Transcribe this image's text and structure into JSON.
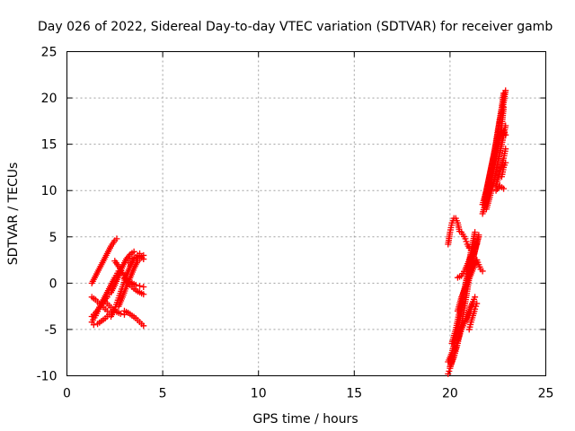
{
  "chart_data": {
    "type": "scatter",
    "title": "Day 026 of 2022, Sidereal Day-to-day VTEC variation (SDTVAR) for receiver gamb",
    "xlabel": "GPS time / hours",
    "ylabel": "SDTVAR / TECUs",
    "xlim": [
      0,
      25
    ],
    "ylim": [
      -10,
      25
    ],
    "xticks": [
      0,
      5,
      10,
      15,
      20,
      25
    ],
    "yticks": [
      -10,
      -5,
      0,
      5,
      10,
      15,
      20,
      25
    ],
    "xtick_labels": [
      "0",
      "5",
      "10",
      "15",
      "20",
      "25"
    ],
    "ytick_labels": [
      "-10",
      "-5",
      "0",
      "5",
      "10",
      "15",
      "20",
      "25"
    ],
    "grid": true,
    "marker": "+",
    "color": "#ff0000",
    "series": [
      {
        "x": [
          1.3,
          1.5,
          1.7,
          1.9,
          2.1,
          2.3,
          2.5,
          2.6
        ],
        "y": [
          0.0,
          0.8,
          1.6,
          2.4,
          3.2,
          4.0,
          4.6,
          4.8
        ]
      },
      {
        "x": [
          1.3,
          1.5,
          1.7,
          1.9,
          2.1,
          2.3,
          2.5,
          2.7,
          2.8
        ],
        "y": [
          -4.2,
          -3.5,
          -2.6,
          -1.8,
          -1.0,
          -0.2,
          0.6,
          1.3,
          1.6
        ]
      },
      {
        "x": [
          1.3,
          1.5,
          1.7,
          1.9,
          2.1,
          2.2
        ],
        "y": [
          -3.6,
          -3.2,
          -2.6,
          -2.0,
          -1.5,
          -1.2
        ]
      },
      {
        "x": [
          1.4,
          1.6,
          1.8,
          2.0,
          2.2,
          2.4
        ],
        "y": [
          -4.5,
          -4.4,
          -4.1,
          -3.8,
          -3.4,
          -3.0
        ]
      },
      {
        "x": [
          1.3,
          1.5,
          1.7,
          1.9,
          2.1
        ],
        "y": [
          -1.5,
          -1.8,
          -2.2,
          -2.6,
          -3.0
        ]
      },
      {
        "x": [
          2.0,
          2.2,
          2.4,
          2.6,
          2.8,
          3.0
        ],
        "y": [
          -2.0,
          -2.4,
          -2.8,
          -3.1,
          -3.3,
          -3.4
        ]
      },
      {
        "x": [
          2.3,
          2.5,
          2.7,
          2.9,
          3.1,
          3.3,
          3.5,
          3.7,
          3.8
        ],
        "y": [
          -3.6,
          -2.8,
          -1.6,
          -0.4,
          0.8,
          1.8,
          2.6,
          3.0,
          3.2
        ]
      },
      {
        "x": [
          2.3,
          2.5,
          2.7,
          2.9,
          3.1,
          3.3,
          3.5
        ],
        "y": [
          -1.0,
          -0.2,
          0.8,
          1.8,
          2.6,
          3.1,
          3.4
        ]
      },
      {
        "x": [
          2.7,
          2.9,
          3.1,
          3.3,
          3.5,
          3.7,
          3.9,
          4.0
        ],
        "y": [
          -2.5,
          -1.5,
          -0.4,
          0.6,
          1.6,
          2.4,
          2.8,
          3.0
        ]
      },
      {
        "x": [
          2.5,
          2.7,
          2.9,
          3.1,
          3.3,
          3.5,
          3.7,
          3.9,
          4.0
        ],
        "y": [
          2.4,
          1.8,
          1.1,
          0.4,
          -0.2,
          -0.6,
          -0.9,
          -1.1,
          -1.2
        ]
      },
      {
        "x": [
          3.0,
          3.2,
          3.4,
          3.6,
          3.8,
          4.0
        ],
        "y": [
          -3.0,
          -3.2,
          -3.5,
          -3.8,
          -4.2,
          -4.6
        ]
      },
      {
        "x": [
          3.0,
          3.2,
          3.4,
          3.6,
          3.8,
          4.0
        ],
        "y": [
          0.5,
          0.2,
          0.0,
          -0.2,
          -0.3,
          -0.4
        ]
      },
      {
        "x": [
          3.2,
          3.4,
          3.6,
          3.8,
          4.0
        ],
        "y": [
          2.2,
          2.6,
          2.8,
          2.9,
          2.6
        ]
      },
      {
        "x": [
          19.9,
          20.0,
          20.1,
          20.2,
          20.3,
          20.4,
          20.5
        ],
        "y": [
          4.2,
          5.5,
          6.5,
          7.0,
          7.0,
          6.5,
          5.6
        ]
      },
      {
        "x": [
          19.9,
          20.0,
          20.1,
          20.2,
          20.3,
          20.4,
          20.6,
          20.8,
          21.0,
          21.2
        ],
        "y": [
          -9.8,
          -9.2,
          -8.5,
          -7.8,
          -7.0,
          -6.2,
          -5.0,
          -4.0,
          -3.0,
          -2.0
        ]
      },
      {
        "x": [
          19.9,
          20.1,
          20.3,
          20.5,
          20.7,
          20.9,
          21.1,
          21.3
        ],
        "y": [
          -8.5,
          -7.5,
          -6.0,
          -4.0,
          -1.5,
          1.0,
          3.5,
          5.5
        ]
      },
      {
        "x": [
          20.0,
          20.2,
          20.4,
          20.6,
          20.8,
          21.0,
          21.2,
          21.4,
          21.5
        ],
        "y": [
          -9.0,
          -8.0,
          -6.5,
          -4.5,
          -2.0,
          0.5,
          2.5,
          4.5,
          5.2
        ]
      },
      {
        "x": [
          20.1,
          20.3,
          20.5,
          20.7,
          20.9,
          21.1,
          21.3,
          21.5
        ],
        "y": [
          -6.5,
          -5.0,
          -3.0,
          -1.0,
          0.5,
          2.0,
          3.5,
          5.0
        ]
      },
      {
        "x": [
          20.4,
          20.6,
          20.8,
          21.0,
          21.2,
          21.4
        ],
        "y": [
          -3.0,
          -1.5,
          -0.5,
          0.5,
          1.5,
          2.5
        ]
      },
      {
        "x": [
          20.4,
          20.6,
          20.8,
          21.0,
          21.2,
          21.4
        ],
        "y": [
          0.6,
          0.8,
          1.5,
          2.5,
          3.5,
          4.2
        ]
      },
      {
        "x": [
          20.6,
          20.8,
          20.9,
          21.0,
          21.1
        ],
        "y": [
          5.5,
          4.8,
          4.2,
          3.8,
          3.5
        ]
      },
      {
        "x": [
          20.9,
          21.0,
          21.1,
          21.2,
          21.3
        ],
        "y": [
          -4.0,
          -3.5,
          -2.8,
          -2.0,
          -1.5
        ]
      },
      {
        "x": [
          21.0,
          21.1,
          21.2,
          21.3,
          21.4
        ],
        "y": [
          -5.0,
          -4.2,
          -3.5,
          -2.8,
          -2.2
        ]
      },
      {
        "x": [
          21.4,
          21.5,
          21.6,
          21.7
        ],
        "y": [
          2.5,
          2.0,
          1.5,
          1.3
        ]
      },
      {
        "x": [
          21.7,
          21.9,
          22.1,
          22.3,
          22.5,
          22.7,
          22.8
        ],
        "y": [
          8.5,
          10.0,
          12.0,
          14.0,
          16.5,
          19.0,
          20.5
        ]
      },
      {
        "x": [
          21.7,
          21.9,
          22.1,
          22.3,
          22.5,
          22.7,
          22.8
        ],
        "y": [
          7.5,
          9.0,
          10.5,
          12.5,
          14.5,
          17.0,
          19.0
        ]
      },
      {
        "x": [
          21.8,
          22.0,
          22.2,
          22.4,
          22.6,
          22.8,
          22.9
        ],
        "y": [
          9.0,
          11.0,
          13.0,
          15.0,
          17.5,
          19.5,
          20.8
        ]
      },
      {
        "x": [
          21.9,
          22.1,
          22.3,
          22.5,
          22.7,
          22.9
        ],
        "y": [
          8.0,
          9.5,
          11.0,
          13.0,
          15.0,
          17.0
        ]
      },
      {
        "x": [
          22.0,
          22.2,
          22.4,
          22.6,
          22.8,
          22.9
        ],
        "y": [
          10.0,
          12.5,
          14.5,
          16.0,
          16.5,
          16.0
        ]
      },
      {
        "x": [
          22.4,
          22.6,
          22.8,
          22.9
        ],
        "y": [
          10.5,
          12.0,
          13.5,
          14.5
        ]
      },
      {
        "x": [
          22.4,
          22.6,
          22.8
        ],
        "y": [
          10.0,
          10.5,
          10.2
        ]
      },
      {
        "x": [
          22.7,
          22.8,
          22.9
        ],
        "y": [
          11.5,
          12.5,
          13.0
        ]
      }
    ]
  }
}
